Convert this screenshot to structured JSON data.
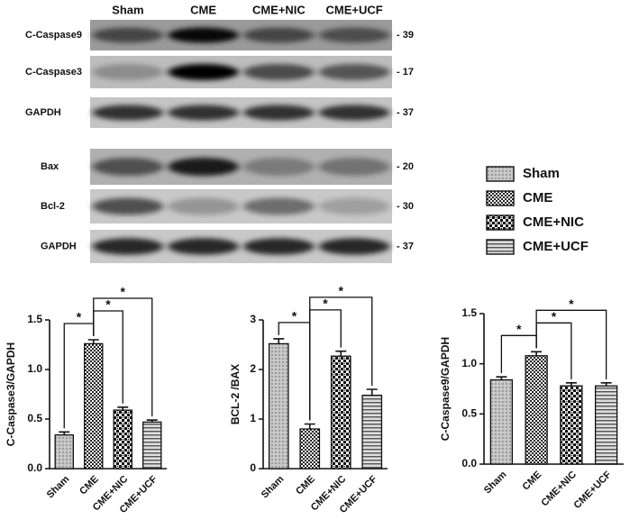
{
  "blot": {
    "lanes": [
      "Sham",
      "CME",
      "CME+NIC",
      "CME+UCF"
    ],
    "rows": [
      {
        "label": "C-Caspase9",
        "marker": "- 39"
      },
      {
        "label": "C-Caspase3",
        "marker": "- 17"
      },
      {
        "label": "GAPDH",
        "marker": "- 37"
      },
      {
        "label": "Bax",
        "marker": "- 20"
      },
      {
        "label": "Bcl-2",
        "marker": "- 30"
      },
      {
        "label": "GAPDH",
        "marker": "- 37"
      }
    ]
  },
  "legend": [
    "Sham",
    "CME",
    "CME+NIC",
    "CME+UCF"
  ],
  "chart_data": [
    {
      "type": "bar",
      "ylabel": "C-Caspase3/GAPDH",
      "categories": [
        "Sham",
        "CME",
        "CME+NIC",
        "CME+UCF"
      ],
      "values": [
        0.34,
        1.26,
        0.59,
        0.47
      ],
      "errors": [
        0.03,
        0.04,
        0.03,
        0.02
      ],
      "ylim": [
        0,
        1.5
      ],
      "yticks": [
        {
          "value": 0,
          "label": "0.0"
        },
        0.5,
        {
          "value": 1,
          "label": "1.0"
        },
        1.5
      ],
      "annotations": [
        "*",
        "*",
        "*"
      ]
    },
    {
      "type": "bar",
      "ylabel": "BCL-2 /BAX",
      "categories": [
        "Sham",
        "CME",
        "CME+NIC",
        "CME+UCF"
      ],
      "values": [
        2.52,
        0.8,
        2.27,
        1.48
      ],
      "errors": [
        0.1,
        0.1,
        0.1,
        0.12
      ],
      "ylim": [
        0,
        3
      ],
      "yticks": [
        0,
        1,
        2,
        3
      ],
      "annotations": [
        "*",
        "*",
        "*"
      ]
    },
    {
      "type": "bar",
      "ylabel": "C-Caspase9/GAPDH",
      "categories": [
        "Sham",
        "CME",
        "CME+NIC",
        "CME+UCF"
      ],
      "values": [
        0.84,
        1.08,
        0.78,
        0.78
      ],
      "errors": [
        0.03,
        0.04,
        0.03,
        0.03
      ],
      "ylim": [
        0,
        1.5
      ],
      "yticks": [
        {
          "value": 0,
          "label": "0.0"
        },
        0.5,
        {
          "value": 1,
          "label": "1.0"
        },
        1.5
      ],
      "annotations": [
        "*",
        "*",
        "*"
      ]
    }
  ]
}
